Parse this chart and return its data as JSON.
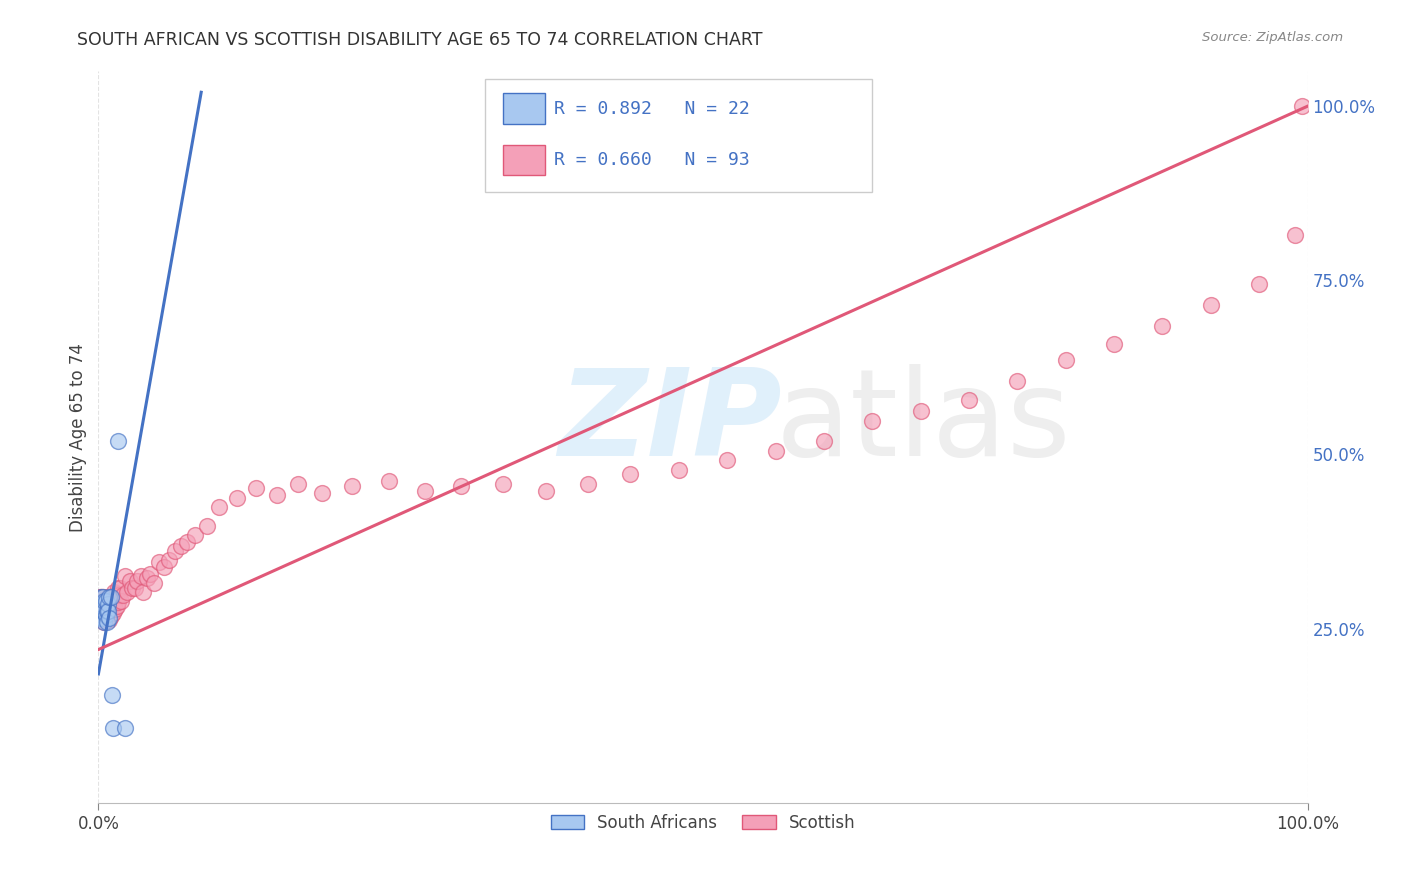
{
  "title": "SOUTH AFRICAN VS SCOTTISH DISABILITY AGE 65 TO 74 CORRELATION CHART",
  "source": "Source: ZipAtlas.com",
  "ylabel": "Disability Age 65 to 74",
  "ylabel_right_ticks": [
    "100.0%",
    "75.0%",
    "50.0%",
    "25.0%"
  ],
  "ylabel_right_vals": [
    1.0,
    0.75,
    0.5,
    0.25
  ],
  "legend_blue_r": "R = 0.892",
  "legend_blue_n": "N = 22",
  "legend_pink_r": "R = 0.660",
  "legend_pink_n": "N = 93",
  "legend_blue_label": "South Africans",
  "legend_pink_label": "Scottish",
  "title_color": "#333333",
  "blue_color": "#A8C8F0",
  "pink_color": "#F4A0B8",
  "blue_line_color": "#4472C4",
  "pink_line_color": "#E05878",
  "grid_color": "#E0E0E0",
  "background_color": "#FFFFFF",
  "blue_pts_x": [
    0.001,
    0.002,
    0.002,
    0.003,
    0.003,
    0.004,
    0.004,
    0.005,
    0.005,
    0.006,
    0.006,
    0.007,
    0.007,
    0.008,
    0.008,
    0.009,
    0.009,
    0.01,
    0.011,
    0.012,
    0.016,
    0.022
  ],
  "blue_pts_y": [
    0.265,
    0.275,
    0.295,
    0.265,
    0.285,
    0.275,
    0.295,
    0.26,
    0.29,
    0.27,
    0.29,
    0.275,
    0.26,
    0.285,
    0.275,
    0.295,
    0.265,
    0.295,
    0.155,
    0.108,
    0.52,
    0.108
  ],
  "pink_pts_x": [
    0.001,
    0.001,
    0.001,
    0.002,
    0.002,
    0.002,
    0.003,
    0.003,
    0.003,
    0.004,
    0.004,
    0.004,
    0.005,
    0.005,
    0.005,
    0.006,
    0.006,
    0.006,
    0.007,
    0.007,
    0.007,
    0.008,
    0.008,
    0.008,
    0.009,
    0.009,
    0.009,
    0.01,
    0.01,
    0.011,
    0.011,
    0.012,
    0.012,
    0.013,
    0.013,
    0.014,
    0.014,
    0.015,
    0.015,
    0.016,
    0.016,
    0.017,
    0.018,
    0.019,
    0.02,
    0.022,
    0.024,
    0.026,
    0.028,
    0.03,
    0.032,
    0.035,
    0.037,
    0.04,
    0.043,
    0.046,
    0.05,
    0.054,
    0.058,
    0.063,
    0.068,
    0.073,
    0.08,
    0.09,
    0.1,
    0.115,
    0.13,
    0.148,
    0.165,
    0.185,
    0.21,
    0.24,
    0.27,
    0.3,
    0.335,
    0.37,
    0.405,
    0.44,
    0.48,
    0.52,
    0.56,
    0.6,
    0.64,
    0.68,
    0.72,
    0.76,
    0.8,
    0.84,
    0.88,
    0.92,
    0.96,
    0.99,
    0.995
  ],
  "pink_pts_y": [
    0.28,
    0.29,
    0.295,
    0.27,
    0.285,
    0.295,
    0.275,
    0.285,
    0.295,
    0.27,
    0.285,
    0.295,
    0.26,
    0.28,
    0.292,
    0.268,
    0.282,
    0.292,
    0.262,
    0.278,
    0.292,
    0.268,
    0.282,
    0.296,
    0.262,
    0.278,
    0.294,
    0.268,
    0.29,
    0.278,
    0.294,
    0.272,
    0.288,
    0.285,
    0.302,
    0.278,
    0.298,
    0.282,
    0.3,
    0.288,
    0.308,
    0.298,
    0.308,
    0.29,
    0.298,
    0.325,
    0.302,
    0.318,
    0.308,
    0.308,
    0.318,
    0.325,
    0.302,
    0.322,
    0.328,
    0.315,
    0.345,
    0.338,
    0.348,
    0.362,
    0.368,
    0.375,
    0.385,
    0.398,
    0.425,
    0.438,
    0.452,
    0.442,
    0.458,
    0.445,
    0.455,
    0.462,
    0.448,
    0.455,
    0.458,
    0.448,
    0.458,
    0.472,
    0.478,
    0.492,
    0.505,
    0.52,
    0.548,
    0.562,
    0.578,
    0.605,
    0.635,
    0.658,
    0.685,
    0.715,
    0.745,
    0.815,
    1.0
  ],
  "blue_line_x": [
    0.0,
    0.085
  ],
  "blue_line_y": [
    0.185,
    1.02
  ],
  "pink_line_x": [
    0.0,
    1.0
  ],
  "pink_line_y": [
    0.22,
    1.0
  ],
  "xlim": [
    0.0,
    1.0
  ],
  "ylim": [
    0.0,
    1.05
  ]
}
